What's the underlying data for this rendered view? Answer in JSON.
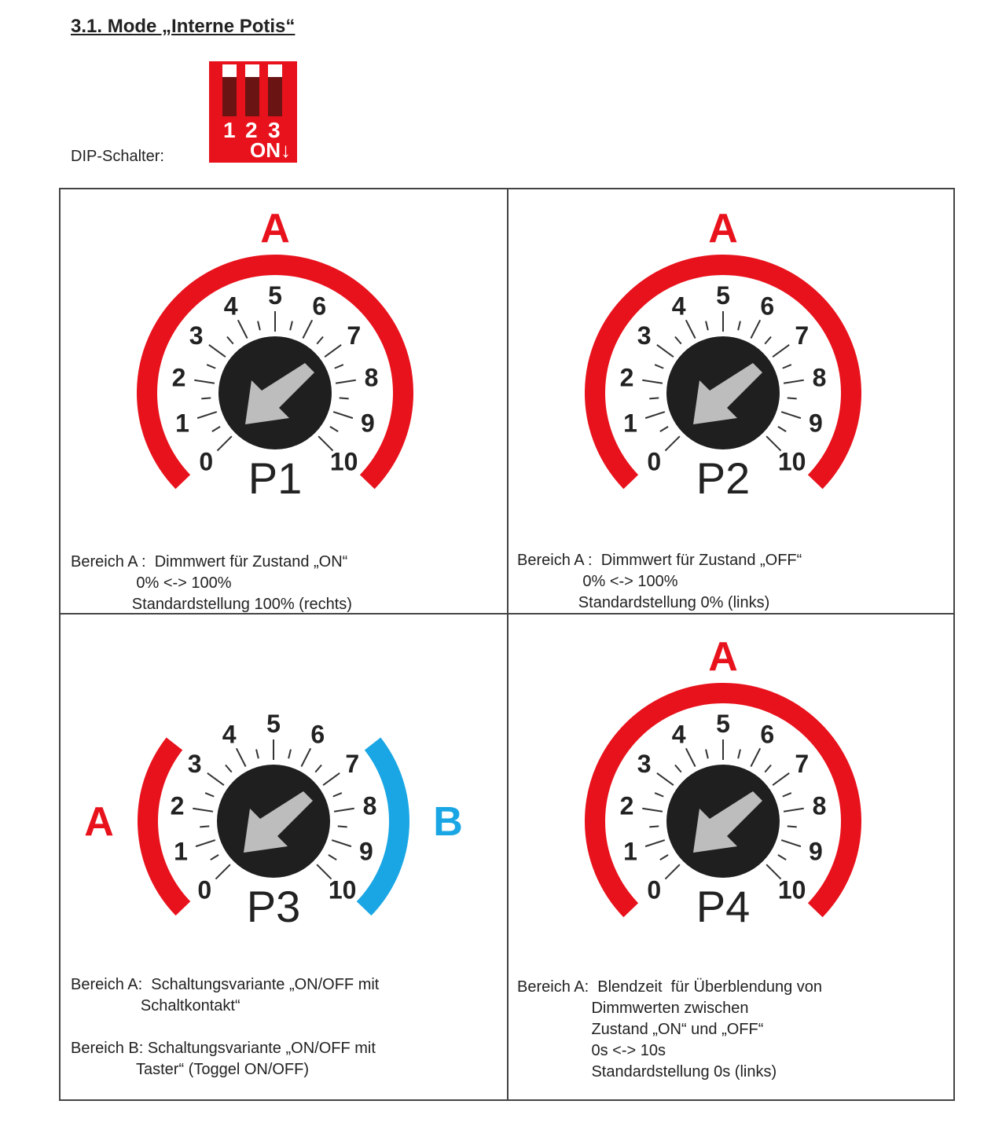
{
  "heading": "3.1. Mode „Interne Potis“",
  "dip": {
    "label": "DIP-Schalter:",
    "switch_numbers": [
      "1",
      "2",
      "3"
    ],
    "on_label": "ON↓",
    "color": "#e8121c",
    "positions": [
      "off",
      "off",
      "off"
    ]
  },
  "colors": {
    "range_a": "#e8121c",
    "range_b": "#1aa6e4",
    "knob": "#1f1f1f",
    "arrow": "#bdbdbd"
  },
  "scale_labels": [
    "0",
    "1",
    "2",
    "3",
    "4",
    "5",
    "6",
    "7",
    "8",
    "9",
    "10"
  ],
  "potis": [
    {
      "name": "P1",
      "ranges": [
        {
          "label": "A",
          "span": "full"
        }
      ],
      "text": [
        "Bereich A :  Dimmwert für Zustand „ON“",
        "               0% <-> 100%",
        "              Standardstellung 100% (rechts)"
      ]
    },
    {
      "name": "P2",
      "ranges": [
        {
          "label": "A",
          "span": "full"
        }
      ],
      "text": [
        "Bereich A :  Dimmwert für Zustand „OFF“",
        "               0% <-> 100%",
        "              Standardstellung 0% (links)"
      ]
    },
    {
      "name": "P3",
      "ranges": [
        {
          "label": "A",
          "span": "left"
        },
        {
          "label": "B",
          "span": "right"
        }
      ],
      "text": [
        "Bereich A:  Schaltungsvariante „ON/OFF mit",
        "                Schaltkontakt“",
        "",
        "Bereich B: Schaltungsvariante „ON/OFF mit",
        "               Taster“ (Toggel ON/OFF)"
      ]
    },
    {
      "name": "P4",
      "ranges": [
        {
          "label": "A",
          "span": "full"
        }
      ],
      "text": [
        "Bereich A:  Blendzeit  für Überblendung von",
        "                 Dimmwerten zwischen",
        "                 Zustand „ON“ und „OFF“",
        "                 0s <-> 10s",
        "                 Standardstellung 0s (links)"
      ]
    }
  ]
}
